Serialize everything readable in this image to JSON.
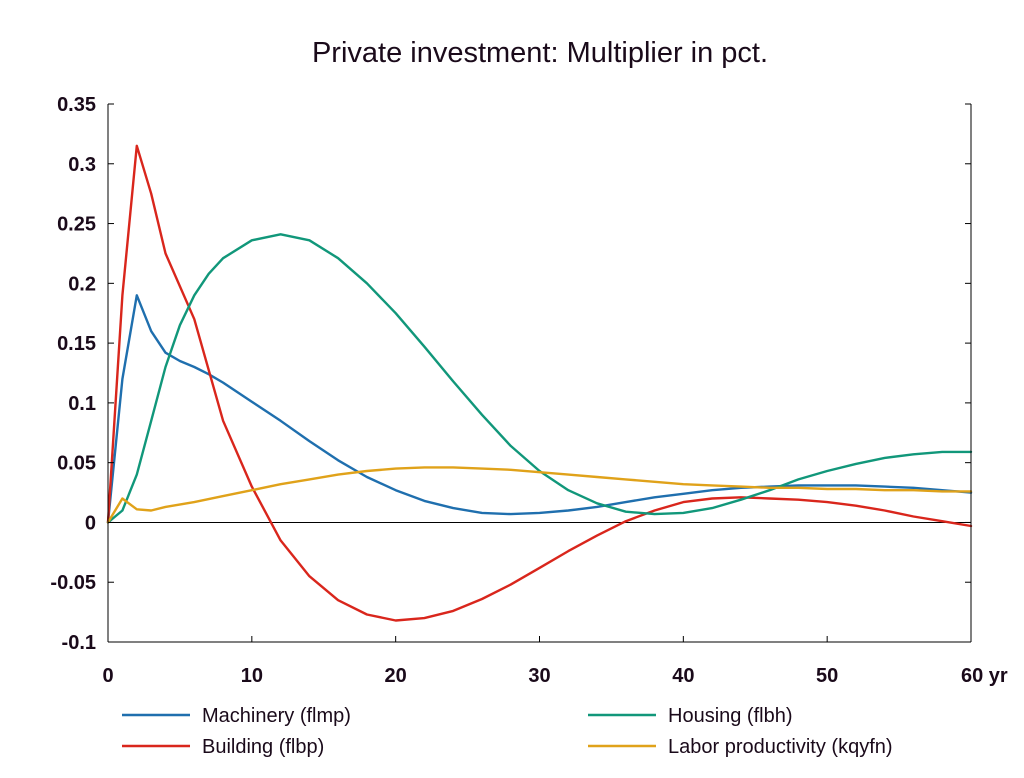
{
  "chart_data": {
    "type": "line",
    "title": "Private investment: Multiplier in pct.",
    "xlabel": "",
    "ylabel": "",
    "xlim": [
      0,
      60
    ],
    "ylim": [
      -0.1,
      0.35
    ],
    "x_ticks": [
      0,
      10,
      20,
      30,
      40,
      50,
      60
    ],
    "x_tick_labels": [
      "0",
      "10",
      "20",
      "30",
      "40",
      "50",
      "60 yr"
    ],
    "y_ticks": [
      -0.1,
      -0.05,
      0,
      0.05,
      0.1,
      0.15,
      0.2,
      0.25,
      0.3,
      0.35
    ],
    "y_tick_labels": [
      "-0.1",
      "-0.05",
      "0",
      "0.05",
      "0.1",
      "0.15",
      "0.2",
      "0.25",
      "0.3",
      "0.35"
    ],
    "grid": false,
    "zero_line": true,
    "legend_position": "bottom",
    "series": [
      {
        "name": "Machinery (flmp)",
        "color": "#1f6fae",
        "points": [
          [
            0,
            0
          ],
          [
            1,
            0.12
          ],
          [
            2,
            0.19
          ],
          [
            3,
            0.16
          ],
          [
            4,
            0.142
          ],
          [
            5,
            0.135
          ],
          [
            6,
            0.13
          ],
          [
            7,
            0.124
          ],
          [
            8,
            0.117
          ],
          [
            10,
            0.101
          ],
          [
            12,
            0.085
          ],
          [
            14,
            0.068
          ],
          [
            16,
            0.052
          ],
          [
            18,
            0.038
          ],
          [
            20,
            0.027
          ],
          [
            22,
            0.018
          ],
          [
            24,
            0.012
          ],
          [
            26,
            0.008
          ],
          [
            28,
            0.007
          ],
          [
            30,
            0.008
          ],
          [
            32,
            0.01
          ],
          [
            34,
            0.013
          ],
          [
            36,
            0.017
          ],
          [
            38,
            0.021
          ],
          [
            40,
            0.024
          ],
          [
            42,
            0.027
          ],
          [
            44,
            0.029
          ],
          [
            46,
            0.03
          ],
          [
            48,
            0.031
          ],
          [
            50,
            0.031
          ],
          [
            52,
            0.031
          ],
          [
            54,
            0.03
          ],
          [
            56,
            0.029
          ],
          [
            58,
            0.027
          ],
          [
            60,
            0.025
          ]
        ]
      },
      {
        "name": "Building (flbp)",
        "color": "#d9261c",
        "points": [
          [
            0,
            0
          ],
          [
            1,
            0.19
          ],
          [
            2,
            0.315
          ],
          [
            3,
            0.275
          ],
          [
            4,
            0.225
          ],
          [
            6,
            0.17
          ],
          [
            8,
            0.085
          ],
          [
            10,
            0.03
          ],
          [
            12,
            -0.015
          ],
          [
            14,
            -0.045
          ],
          [
            16,
            -0.065
          ],
          [
            18,
            -0.077
          ],
          [
            20,
            -0.082
          ],
          [
            22,
            -0.08
          ],
          [
            24,
            -0.074
          ],
          [
            26,
            -0.064
          ],
          [
            28,
            -0.052
          ],
          [
            30,
            -0.038
          ],
          [
            32,
            -0.024
          ],
          [
            34,
            -0.011
          ],
          [
            36,
            0.001
          ],
          [
            38,
            0.01
          ],
          [
            40,
            0.017
          ],
          [
            42,
            0.02
          ],
          [
            44,
            0.021
          ],
          [
            46,
            0.02
          ],
          [
            48,
            0.019
          ],
          [
            50,
            0.017
          ],
          [
            52,
            0.014
          ],
          [
            54,
            0.01
          ],
          [
            56,
            0.005
          ],
          [
            58,
            0.001
          ],
          [
            60,
            -0.003
          ]
        ]
      },
      {
        "name": "Housing (flbh)",
        "color": "#11977a",
        "points": [
          [
            0,
            0
          ],
          [
            1,
            0.01
          ],
          [
            2,
            0.04
          ],
          [
            3,
            0.085
          ],
          [
            4,
            0.13
          ],
          [
            5,
            0.165
          ],
          [
            6,
            0.19
          ],
          [
            7,
            0.208
          ],
          [
            8,
            0.221
          ],
          [
            10,
            0.236
          ],
          [
            12,
            0.241
          ],
          [
            14,
            0.236
          ],
          [
            16,
            0.221
          ],
          [
            18,
            0.2
          ],
          [
            20,
            0.175
          ],
          [
            22,
            0.147
          ],
          [
            24,
            0.118
          ],
          [
            26,
            0.09
          ],
          [
            28,
            0.064
          ],
          [
            30,
            0.043
          ],
          [
            32,
            0.027
          ],
          [
            34,
            0.016
          ],
          [
            36,
            0.009
          ],
          [
            38,
            0.007
          ],
          [
            40,
            0.008
          ],
          [
            42,
            0.012
          ],
          [
            44,
            0.019
          ],
          [
            46,
            0.027
          ],
          [
            48,
            0.036
          ],
          [
            50,
            0.043
          ],
          [
            52,
            0.049
          ],
          [
            54,
            0.054
          ],
          [
            56,
            0.057
          ],
          [
            58,
            0.059
          ],
          [
            60,
            0.059
          ]
        ]
      },
      {
        "name": "Labor productivity (kqyfn)",
        "color": "#e0a21a",
        "points": [
          [
            0,
            0
          ],
          [
            1,
            0.02
          ],
          [
            2,
            0.011
          ],
          [
            3,
            0.01
          ],
          [
            4,
            0.013
          ],
          [
            6,
            0.017
          ],
          [
            8,
            0.022
          ],
          [
            10,
            0.027
          ],
          [
            12,
            0.032
          ],
          [
            14,
            0.036
          ],
          [
            16,
            0.04
          ],
          [
            18,
            0.043
          ],
          [
            20,
            0.045
          ],
          [
            22,
            0.046
          ],
          [
            24,
            0.046
          ],
          [
            26,
            0.045
          ],
          [
            28,
            0.044
          ],
          [
            30,
            0.042
          ],
          [
            32,
            0.04
          ],
          [
            34,
            0.038
          ],
          [
            36,
            0.036
          ],
          [
            38,
            0.034
          ],
          [
            40,
            0.032
          ],
          [
            42,
            0.031
          ],
          [
            44,
            0.03
          ],
          [
            46,
            0.029
          ],
          [
            48,
            0.029
          ],
          [
            50,
            0.028
          ],
          [
            52,
            0.028
          ],
          [
            54,
            0.027
          ],
          [
            56,
            0.027
          ],
          [
            58,
            0.026
          ],
          [
            60,
            0.026
          ]
        ]
      }
    ]
  }
}
